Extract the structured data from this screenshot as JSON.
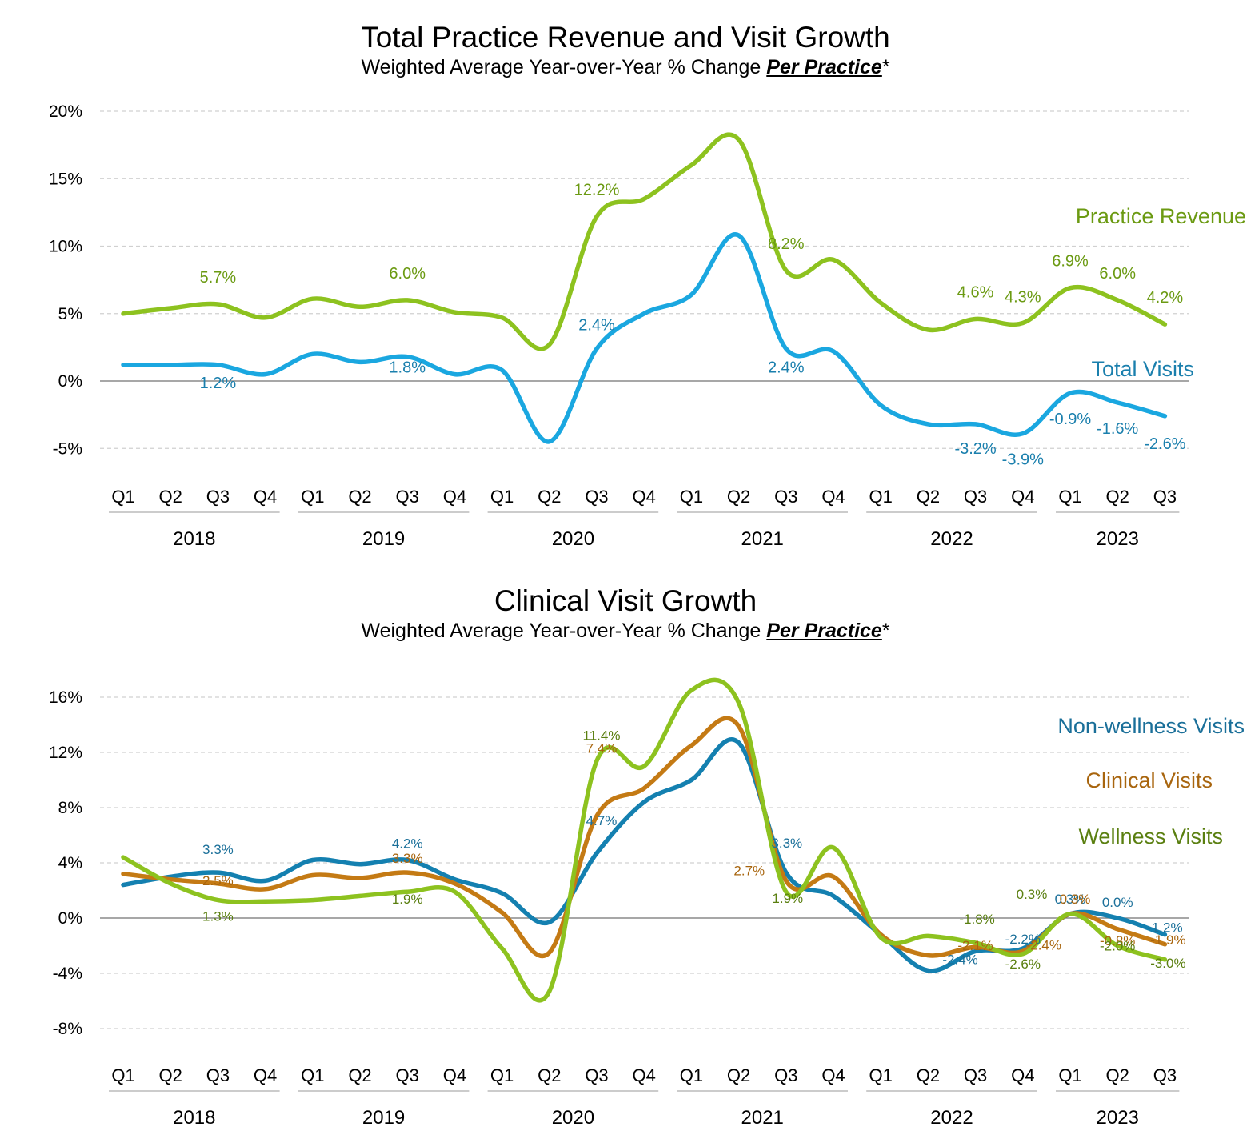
{
  "charts": [
    {
      "title": "Total Practice Revenue and Visit Growth",
      "subtitle_prefix": "Weighted Average Year-over-Year % Change ",
      "subtitle_emphasis": "Per Practice",
      "subtitle_suffix": "*"
    },
    {
      "title": "Clinical Visit Growth",
      "subtitle_prefix": "Weighted Average Year-over-Year % Change ",
      "subtitle_emphasis": "Per Practice",
      "subtitle_suffix": "*"
    }
  ],
  "chart_data": [
    {
      "type": "line",
      "title": "Total Practice Revenue and Visit Growth",
      "subtitle": "Weighted Average Year-over-Year % Change Per Practice*",
      "x_quarters": [
        "Q1",
        "Q2",
        "Q3",
        "Q4",
        "Q1",
        "Q2",
        "Q3",
        "Q4",
        "Q1",
        "Q2",
        "Q3",
        "Q4",
        "Q1",
        "Q2",
        "Q3",
        "Q4",
        "Q1",
        "Q2",
        "Q3",
        "Q4",
        "Q1",
        "Q2",
        "Q3"
      ],
      "x_years": [
        "2018",
        "2019",
        "2020",
        "2021",
        "2022",
        "2023"
      ],
      "y_ticks": [
        20,
        15,
        10,
        5,
        0,
        -5
      ],
      "y_tick_labels": [
        "20%",
        "15%",
        "10%",
        "5%",
        "0%",
        "-5%"
      ],
      "ylim": [
        -7,
        20
      ],
      "grid": true,
      "series": [
        {
          "name": "Practice Revenue",
          "color": "#8dc21f",
          "label_color": "#6b9a12",
          "values": [
            5.0,
            5.4,
            5.7,
            4.7,
            6.1,
            5.5,
            6.0,
            5.1,
            4.7,
            2.7,
            12.2,
            13.5,
            16.0,
            17.9,
            8.2,
            9.0,
            5.8,
            3.8,
            4.6,
            4.3,
            6.9,
            6.0,
            4.2
          ],
          "data_labels": [
            {
              "i": 2,
              "text": "5.7%"
            },
            {
              "i": 6,
              "text": "6.0%"
            },
            {
              "i": 10,
              "text": "12.2%"
            },
            {
              "i": 14,
              "text": "8.2%"
            },
            {
              "i": 18,
              "text": "4.6%"
            },
            {
              "i": 19,
              "text": "4.3%"
            },
            {
              "i": 20,
              "text": "6.9%"
            },
            {
              "i": 21,
              "text": "6.0%"
            },
            {
              "i": 22,
              "text": "4.2%"
            }
          ]
        },
        {
          "name": "Total Visits",
          "color": "#1aa7e0",
          "label_color": "#1a7fad",
          "values": [
            1.2,
            1.2,
            1.2,
            0.5,
            2.0,
            1.4,
            1.8,
            0.5,
            0.8,
            -4.5,
            2.4,
            5.0,
            6.4,
            10.8,
            2.4,
            2.2,
            -1.8,
            -3.2,
            -3.2,
            -3.9,
            -0.9,
            -1.6,
            -2.6
          ],
          "data_labels": [
            {
              "i": 2,
              "text": "1.2%"
            },
            {
              "i": 6,
              "text": "1.8%"
            },
            {
              "i": 10,
              "text": "2.4%"
            },
            {
              "i": 14,
              "text": "2.4%"
            },
            {
              "i": 18,
              "text": "-3.2%"
            },
            {
              "i": 19,
              "text": "-3.9%"
            },
            {
              "i": 20,
              "text": "-0.9%"
            },
            {
              "i": 21,
              "text": "-1.6%"
            },
            {
              "i": 22,
              "text": "-2.6%"
            }
          ]
        }
      ]
    },
    {
      "type": "line",
      "title": "Clinical Visit Growth",
      "subtitle": "Weighted Average Year-over-Year % Change Per Practice*",
      "x_quarters": [
        "Q1",
        "Q2",
        "Q3",
        "Q4",
        "Q1",
        "Q2",
        "Q3",
        "Q4",
        "Q1",
        "Q2",
        "Q3",
        "Q4",
        "Q1",
        "Q2",
        "Q3",
        "Q4",
        "Q1",
        "Q2",
        "Q3",
        "Q4",
        "Q1",
        "Q2",
        "Q3"
      ],
      "x_years": [
        "2018",
        "2019",
        "2020",
        "2021",
        "2022",
        "2023"
      ],
      "y_ticks": [
        16,
        12,
        8,
        4,
        0,
        -4,
        -8
      ],
      "y_tick_labels": [
        "16%",
        "12%",
        "8%",
        "4%",
        "0%",
        "-4%",
        "-8%"
      ],
      "ylim": [
        -9,
        17
      ],
      "grid": true,
      "series": [
        {
          "name": "Non-wellness Visits",
          "color": "#1480b0",
          "label_color": "#1a6f99",
          "values": [
            2.4,
            3.0,
            3.3,
            2.7,
            4.2,
            3.9,
            4.2,
            2.8,
            1.8,
            -0.3,
            4.7,
            8.4,
            10.0,
            12.7,
            3.3,
            1.6,
            -1.2,
            -3.8,
            -2.4,
            -2.2,
            0.3,
            0.0,
            -1.2
          ],
          "data_labels": [
            {
              "i": 2,
              "text": "3.3%"
            },
            {
              "i": 6,
              "text": "4.2%"
            },
            {
              "i": 10,
              "text": "4.7%"
            },
            {
              "i": 14,
              "text": "3.3%"
            },
            {
              "i": 18,
              "text": "-2.4%"
            },
            {
              "i": 19,
              "text": "-2.2%"
            },
            {
              "i": 20,
              "text": "0.3%"
            },
            {
              "i": 21,
              "text": "0.0%"
            },
            {
              "i": 22,
              "text": "-1.2%"
            }
          ]
        },
        {
          "name": "Clinical Visits",
          "color": "#c47a14",
          "label_color": "#a8650e",
          "values": [
            3.2,
            2.8,
            2.5,
            2.1,
            3.1,
            2.9,
            3.3,
            2.5,
            0.4,
            -2.5,
            7.4,
            9.4,
            12.5,
            13.9,
            2.7,
            3.0,
            -1.2,
            -2.7,
            -2.1,
            -2.4,
            0.3,
            -0.8,
            -1.9
          ],
          "data_labels": [
            {
              "i": 2,
              "text": "2.5%"
            },
            {
              "i": 6,
              "text": "3.3%"
            },
            {
              "i": 10,
              "text": "7.4%"
            },
            {
              "i": 14,
              "text": "2.7%"
            },
            {
              "i": 18,
              "text": "-2.1%"
            },
            {
              "i": 19,
              "text": "-2.4%"
            },
            {
              "i": 20,
              "text": "0.3%"
            },
            {
              "i": 21,
              "text": "-0.8%"
            },
            {
              "i": 22,
              "text": "-1.9%"
            }
          ]
        },
        {
          "name": "Wellness Visits",
          "color": "#8dc21f",
          "label_color": "#5a7f10",
          "values": [
            4.4,
            2.5,
            1.3,
            1.2,
            1.3,
            1.6,
            1.9,
            1.9,
            -2.2,
            -5.3,
            11.4,
            11.0,
            16.5,
            15.6,
            1.9,
            5.1,
            -1.4,
            -1.3,
            -1.8,
            -2.6,
            0.3,
            -2.0,
            -3.0
          ],
          "data_labels": [
            {
              "i": 2,
              "text": "1.3%"
            },
            {
              "i": 6,
              "text": "1.9%"
            },
            {
              "i": 10,
              "text": "11.4%"
            },
            {
              "i": 14,
              "text": "1.9%"
            },
            {
              "i": 18,
              "text": "-1.8%"
            },
            {
              "i": 19,
              "text": "-2.6%"
            },
            {
              "i": 20,
              "text": "0.3%"
            },
            {
              "i": 21,
              "text": "-2.0%"
            },
            {
              "i": 22,
              "text": "-3.0%"
            }
          ]
        }
      ]
    }
  ]
}
